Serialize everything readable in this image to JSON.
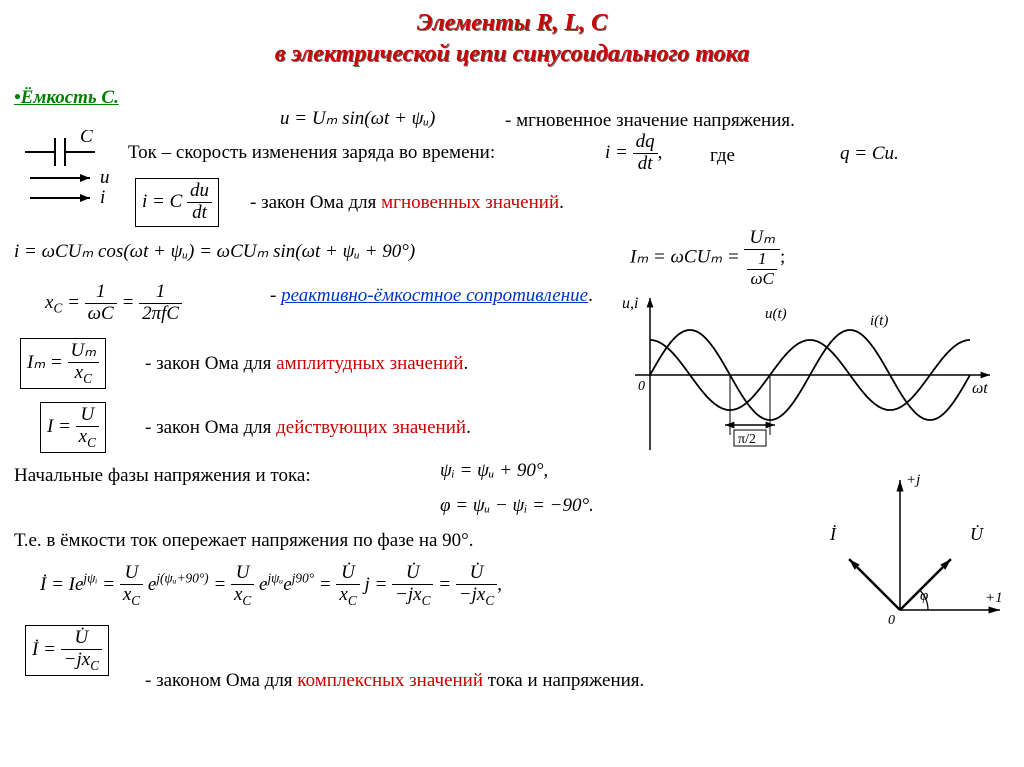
{
  "title_line1": "Элементы R, L, C",
  "title_line2": "в электрической цепи синусоидального тока",
  "section_heading": "•Ёмкость С.",
  "voltage_eq": "u = Uₘ sin(ωt + ψᵤ)",
  "voltage_label": "- мгновенное значение напряжения.",
  "current_def_text": "Ток – скорость изменения заряда во времени:",
  "i_dqdt": {
    "lhs": "i =",
    "num": "dq",
    "den": "dt"
  },
  "where_text": "где",
  "q_eq": "q = Cu.",
  "cap_symbol": {
    "C": "C",
    "u": "u",
    "i": "i"
  },
  "ohm_inst_eq": {
    "lhs": "i = C",
    "num": "du",
    "den": "dt"
  },
  "ohm_inst_label_pre": "- закон Ома для ",
  "ohm_inst_label_red": "мгновенных значений",
  "i_expand": "i = ωCUₘ cos(ωt + ψᵤ) = ωCUₘ sin(ωt + ψᵤ + 90°)",
  "Im_eq": {
    "lhs": "Iₘ = ωCUₘ =",
    "num": "Uₘ",
    "den_top": "1",
    "den_bot": "ωC"
  },
  "xc_eq": {
    "lhs": "x",
    "sub": "C",
    "mid": " =",
    "num1": "1",
    "den1": "ωC",
    "num2": "1",
    "den2": "2πfC"
  },
  "reactive_label": "реактивно-ёмкостное сопротивление",
  "ohm_amp_eq": {
    "lhs": "Iₘ =",
    "num": "Uₘ",
    "den": "x",
    "den_sub": "C"
  },
  "ohm_amp_label_pre": "- закон Ома для ",
  "ohm_amp_label_red": "амплитудных значений",
  "ohm_rms_eq": {
    "lhs": "I =",
    "num": "U",
    "den": "x",
    "den_sub": "C"
  },
  "ohm_rms_label_pre": "- закон Ома для ",
  "ohm_rms_label_red": "действующих значений",
  "phase_intro": "Начальные фазы напряжения и тока:",
  "psi_i_eq": "ψᵢ = ψᵤ + 90°,",
  "phi_eq": "φ = ψᵤ − ψᵢ = −90°.",
  "summary_text": "Т.е. в ёмкости ток опережает напряжения по фазе на 90°.",
  "complex_chain": {
    "a": "İ = Ie",
    "a_sup": "jψᵢ",
    "b_num": "U",
    "b_den": "x",
    "b_den_sub": "C",
    "b_sup": "j(ψᵤ+90°)",
    "c_sup1": "jψᵤ",
    "c_sup2": "j90°",
    "d_num": "U̇",
    "d_den": "x",
    "d_den_sub": "C",
    "e_num": "U̇",
    "e_den_pre": "−jx",
    "e_den_sub": "C",
    "f_num": "U̇",
    "f_den_pre": "−jx",
    "f_den_sub": "C"
  },
  "ohm_complex_eq": {
    "lhs": "İ =",
    "num": "U̇",
    "den_pre": "−jx",
    "den_sub": "C"
  },
  "ohm_complex_label_pre": "- законом Ома для ",
  "ohm_complex_label_red": "комплексных значений",
  "ohm_complex_label_post": " тока и напряжения.",
  "waveform": {
    "ylabel": "u,i",
    "xlabel": "ωt",
    "u_label": "u(t)",
    "i_label": "i(t)",
    "shift_label": "π/2",
    "u_color": "#000000",
    "i_color": "#000000",
    "axis_color": "#000000",
    "u_amplitude": 45,
    "i_amplitude": 35,
    "phase_shift_deg": 90
  },
  "phasor": {
    "j_label": "+j",
    "one_label": "+1",
    "origin_label": "0",
    "i_label": "İ",
    "u_label": "U̇",
    "phi_label": "φ",
    "axis_color": "#000000",
    "i_angle_deg": 135,
    "u_angle_deg": 45,
    "vec_len": 72
  },
  "colors": {
    "title_red": "#cc0000",
    "green": "#008000",
    "blue_link": "#0033cc",
    "text": "#000000"
  }
}
